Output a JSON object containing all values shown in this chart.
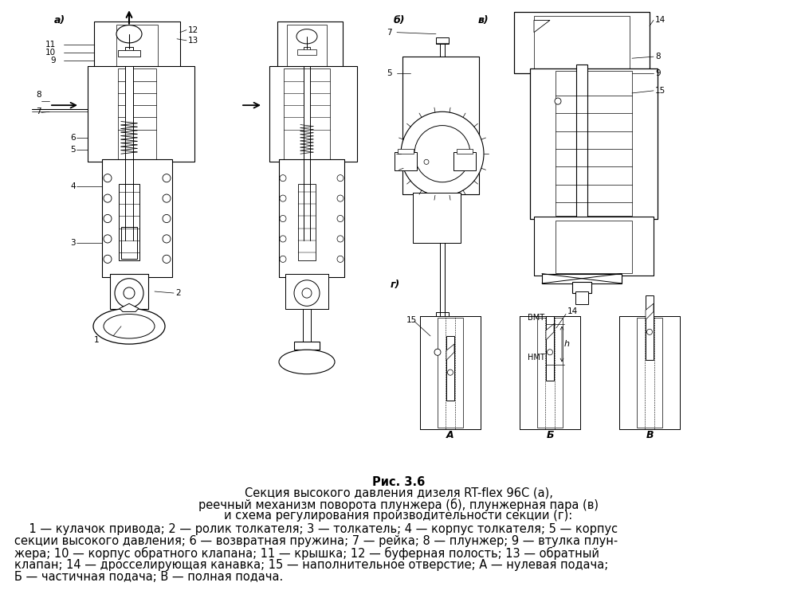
{
  "figure_title": "Рис. 3.6",
  "caption_line1": "Секция высокого давления дизеля RT-flex 96C (а),",
  "caption_line2": "реечный механизм поворота плунжера (б), плунжерная пара (в)",
  "caption_line3": "и схема регулирования производительности секции (г):",
  "legend_line1": "    1 — кулачок привода; 2 — ролик толкателя; 3 — толкатель; 4 — корпус толкателя; 5 — корпус",
  "legend_line2": "секции высокого давления; 6 — возвратная пружина; 7 — рейка; 8 — плунжер; 9 — втулка плун-",
  "legend_line3": "жера; 10 — корпус обратного клапана; 11 — крышка; 12 — буферная полость; 13 — обратный",
  "legend_line4": "клапан; 14 — дросселирующая канавка; 15 — наполнительное отверстие; А — нулевая подача;",
  "legend_line5": "Б — частичная подача; В — полная подача.",
  "bg_color": "#ffffff",
  "text_color": "#000000",
  "fig_width": 10.0,
  "fig_height": 7.56,
  "title_fontsize": 10.5,
  "caption_fontsize": 10.5,
  "legend_fontsize": 10.5
}
